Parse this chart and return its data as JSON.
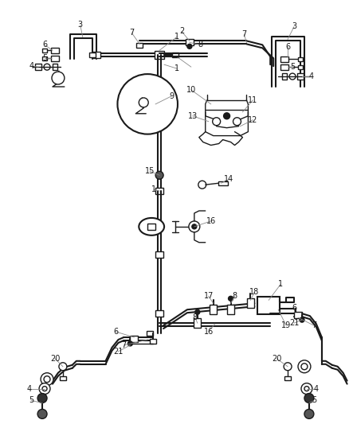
{
  "bg_color": "#ffffff",
  "line_color": "#1a1a1a",
  "gray_color": "#888888",
  "lw": 1.5,
  "tlw": 1.0,
  "fs": 7.0
}
